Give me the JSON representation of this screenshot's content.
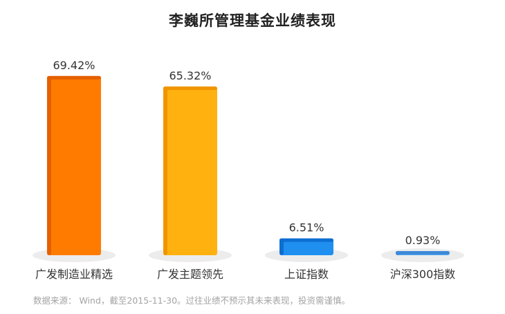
{
  "chart_data": {
    "type": "bar",
    "title": "李巍所管理基金业绩表现",
    "categories": [
      "广发制造业精选",
      "广发主题领先",
      "上证指数",
      "沪深300指数"
    ],
    "values": [
      69.42,
      65.32,
      6.51,
      0.93
    ],
    "value_labels": [
      "69.42%",
      "65.32%",
      "6.51%",
      "0.93%"
    ],
    "unit": "%",
    "ylim": [
      0,
      75
    ],
    "grid": false,
    "legend": "none",
    "colors": [
      "#ff7b00",
      "#ffb10f",
      "#1f8ff0",
      "#5aa9f0"
    ],
    "colors_dark": [
      "#e46000",
      "#f09500",
      "#0d6ed1",
      "#3d8ad8"
    ]
  },
  "footnote": "数据来源： Wind，截至2015-11-30。过往业绩不预示其未来表现，投资需谨慎。"
}
